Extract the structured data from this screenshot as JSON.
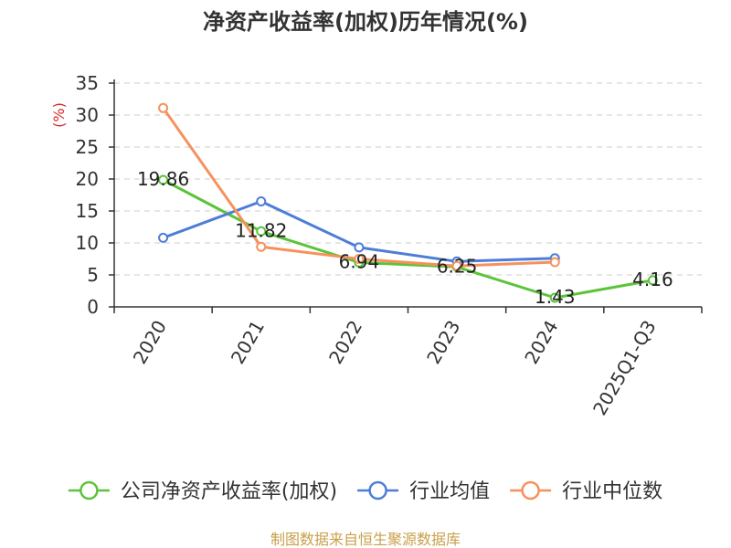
{
  "chart_data": {
    "type": "line",
    "title": "净资产收益率(加权)历年情况(%)",
    "xlabel": "",
    "ylabel": "(%)",
    "ylabel_color": "#d42a2a",
    "categories": [
      "2020",
      "2021",
      "2022",
      "2023",
      "2024",
      "2025Q1-Q3"
    ],
    "ylim": [
      0,
      35
    ],
    "yticks": [
      0,
      5,
      10,
      15,
      20,
      25,
      30,
      35
    ],
    "grid": true,
    "legend_position": "bottom",
    "series": [
      {
        "name": "公司净资产收益率(加权)",
        "color": "#5bc43a",
        "show_values": true,
        "values": [
          19.86,
          11.82,
          6.94,
          6.25,
          1.43,
          4.16
        ]
      },
      {
        "name": "行业均值",
        "color": "#4e7dd9",
        "show_values": false,
        "values": [
          10.8,
          16.5,
          9.3,
          7.1,
          7.6,
          null
        ]
      },
      {
        "name": "行业中位数",
        "color": "#f6915e",
        "show_values": false,
        "values": [
          31.1,
          9.4,
          7.5,
          6.4,
          7.0,
          null
        ]
      }
    ]
  },
  "footer": {
    "source": "制图数据来自恒生聚源数据库",
    "color": "#c9a04b"
  }
}
